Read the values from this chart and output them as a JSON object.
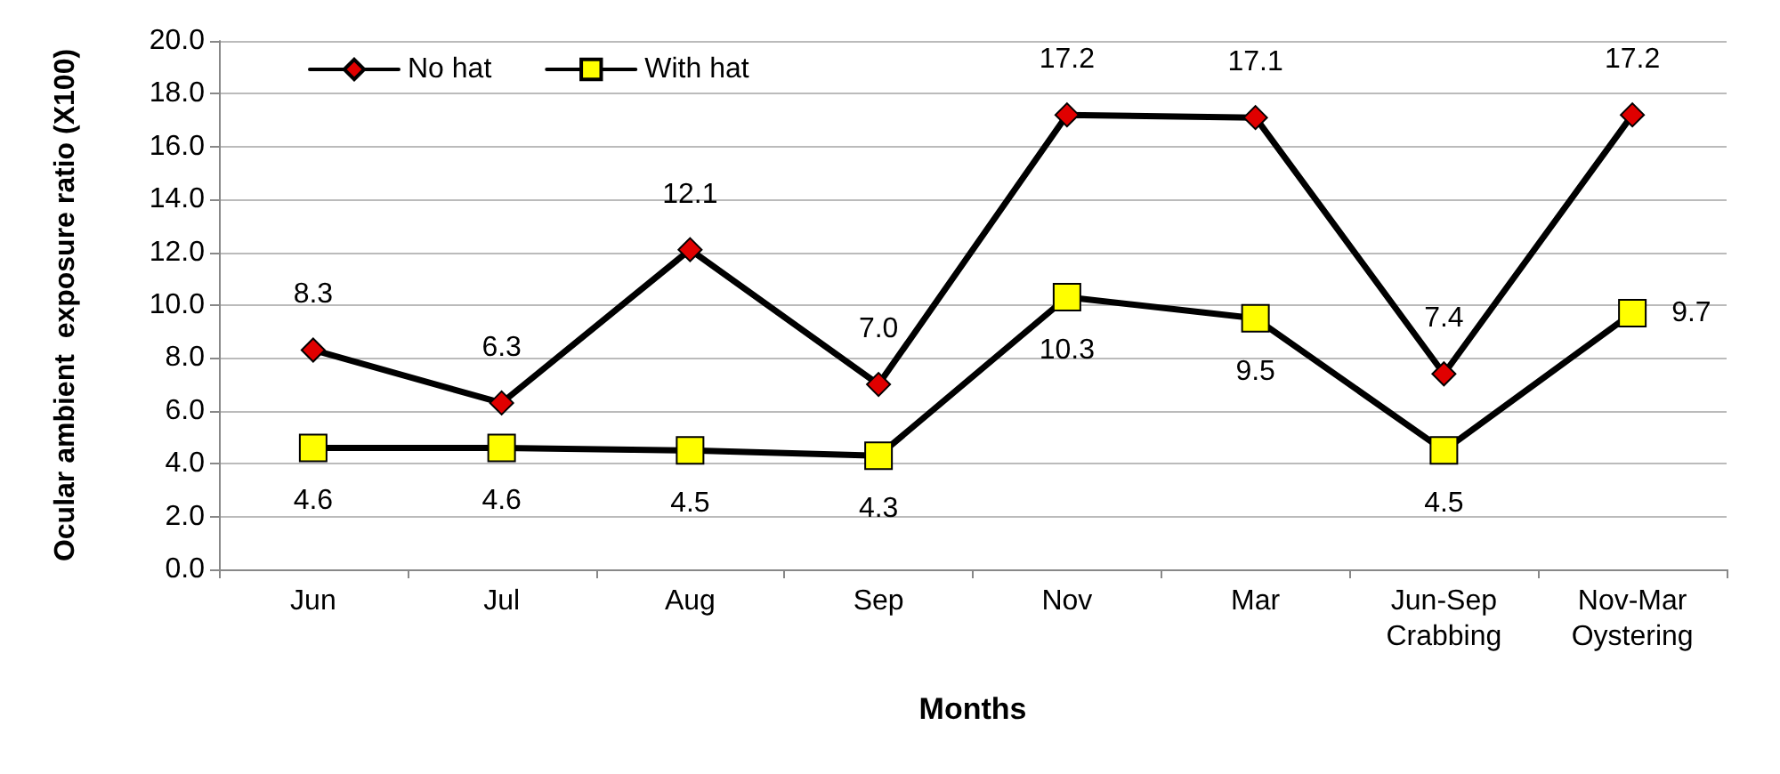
{
  "chart_data": {
    "type": "line",
    "xlabel": "Months",
    "ylabel": "Ocular ambient  exposure ratio (X100)",
    "categories": [
      "Jun",
      "Jul",
      "Aug",
      "Sep",
      "Nov",
      "Mar",
      "Jun-Sep\nCrabbing",
      "Nov-Mar\nOystering"
    ],
    "series": [
      {
        "name": "No hat",
        "color": "#e00000",
        "marker": "diamond",
        "values": [
          8.3,
          6.3,
          12.1,
          7.0,
          17.2,
          17.1,
          7.4,
          17.2
        ],
        "value_labels": [
          "8.3",
          "6.3",
          "12.1",
          "7.0",
          "17.2",
          "17.1",
          "7.4",
          "17.2"
        ]
      },
      {
        "name": "With hat",
        "color": "#ffff00",
        "marker": "square",
        "values": [
          4.6,
          4.6,
          4.5,
          4.3,
          10.3,
          9.5,
          4.5,
          9.7
        ],
        "value_labels": [
          "4.6",
          "4.6",
          "4.5",
          "4.3",
          "10.3",
          "9.5",
          "4.5",
          "9.7"
        ]
      }
    ],
    "ylim": [
      0,
      20
    ],
    "yticks": [
      {
        "value": 0,
        "label": "0.0"
      },
      {
        "value": 2,
        "label": "2.0"
      },
      {
        "value": 4,
        "label": "4.0"
      },
      {
        "value": 6,
        "label": "6.0"
      },
      {
        "value": 8,
        "label": "8.0"
      },
      {
        "value": 10,
        "label": "10.0"
      },
      {
        "value": 12,
        "label": "12.0"
      },
      {
        "value": 14,
        "label": "14.0"
      },
      {
        "value": 16,
        "label": "16.0"
      },
      {
        "value": 18,
        "label": "18.0"
      },
      {
        "value": 20,
        "label": "20.0"
      }
    ],
    "grid": "y",
    "legend": "top left",
    "line_style": "solid"
  }
}
